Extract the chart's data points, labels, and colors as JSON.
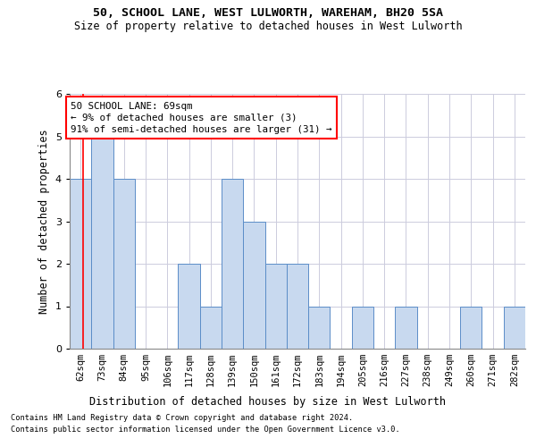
{
  "title1": "50, SCHOOL LANE, WEST LULWORTH, WAREHAM, BH20 5SA",
  "title2": "Size of property relative to detached houses in West Lulworth",
  "xlabel": "Distribution of detached houses by size in West Lulworth",
  "ylabel": "Number of detached properties",
  "categories": [
    "62sqm",
    "73sqm",
    "84sqm",
    "95sqm",
    "106sqm",
    "117sqm",
    "128sqm",
    "139sqm",
    "150sqm",
    "161sqm",
    "172sqm",
    "183sqm",
    "194sqm",
    "205sqm",
    "216sqm",
    "227sqm",
    "238sqm",
    "249sqm",
    "260sqm",
    "271sqm",
    "282sqm"
  ],
  "values": [
    4,
    5,
    4,
    0,
    0,
    2,
    1,
    4,
    3,
    2,
    2,
    1,
    0,
    1,
    0,
    1,
    0,
    0,
    1,
    0,
    1
  ],
  "bar_color": "#c8d9ef",
  "bar_edge_color": "#5b8dc8",
  "ylim": [
    0,
    6
  ],
  "yticks": [
    0,
    1,
    2,
    3,
    4,
    5,
    6
  ],
  "annotation_box_text": "50 SCHOOL LANE: 69sqm\n← 9% of detached houses are smaller (3)\n91% of semi-detached houses are larger (31) →",
  "footnote1": "Contains HM Land Registry data © Crown copyright and database right 2024.",
  "footnote2": "Contains public sector information licensed under the Open Government Licence v3.0.",
  "bg_color": "#ffffff",
  "grid_color": "#ccccdd"
}
